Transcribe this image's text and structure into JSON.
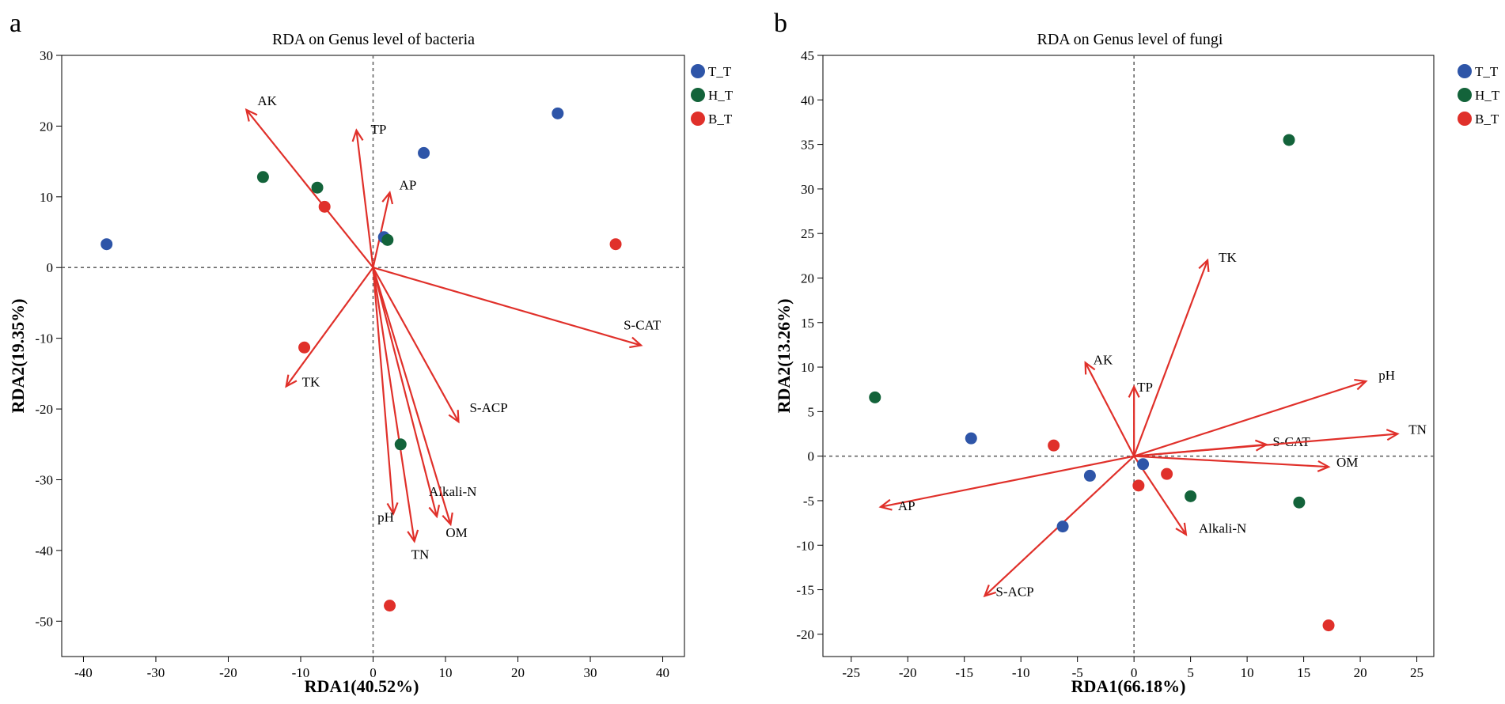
{
  "chart_data": [
    {
      "type": "scatter",
      "panel_label": "a",
      "title": "RDA on Genus level of bacteria",
      "xlabel": "RDA1(40.52%)",
      "ylabel": "RDA2(19.35%)",
      "xlim": [
        -43,
        43
      ],
      "ylim": [
        -55,
        30
      ],
      "xticks": [
        -40,
        -30,
        -20,
        -10,
        0,
        10,
        20,
        30,
        40
      ],
      "yticks": [
        -50,
        -40,
        -30,
        -20,
        -10,
        0,
        10,
        20,
        30
      ],
      "legend": [
        {
          "name": "T_T",
          "color": "#2e55a8"
        },
        {
          "name": "H_T",
          "color": "#13633a"
        },
        {
          "name": "B_T",
          "color": "#e0302a"
        }
      ],
      "points": [
        {
          "group": "T_T",
          "x": -36.8,
          "y": 3.3
        },
        {
          "group": "T_T",
          "x": 25.5,
          "y": 21.8
        },
        {
          "group": "T_T",
          "x": 7.0,
          "y": 16.2
        },
        {
          "group": "T_T",
          "x": 1.5,
          "y": 4.3
        },
        {
          "group": "H_T",
          "x": -15.2,
          "y": 12.8
        },
        {
          "group": "H_T",
          "x": -7.7,
          "y": 11.3
        },
        {
          "group": "H_T",
          "x": 2.0,
          "y": 3.9
        },
        {
          "group": "H_T",
          "x": 3.8,
          "y": -25.0
        },
        {
          "group": "B_T",
          "x": -6.7,
          "y": 8.6
        },
        {
          "group": "B_T",
          "x": 33.5,
          "y": 3.3
        },
        {
          "group": "B_T",
          "x": -9.5,
          "y": -11.3
        },
        {
          "group": "B_T",
          "x": 2.3,
          "y": -47.8
        }
      ],
      "vectors": [
        {
          "name": "AK",
          "x": -17.5,
          "y": 22.3
        },
        {
          "name": "TP",
          "x": -2.3,
          "y": 19.4
        },
        {
          "name": "AP",
          "x": 2.3,
          "y": 10.6
        },
        {
          "name": "S-CAT",
          "x": 37.0,
          "y": -11.0
        },
        {
          "name": "TK",
          "x": -12.0,
          "y": -16.8
        },
        {
          "name": "S-ACP",
          "x": 11.8,
          "y": -21.8
        },
        {
          "name": "Alkali-N",
          "x": 8.8,
          "y": -35.2
        },
        {
          "name": "OM",
          "x": 10.7,
          "y": -36.3
        },
        {
          "name": "pH",
          "x": 2.8,
          "y": -34.8
        },
        {
          "name": "TN",
          "x": 5.7,
          "y": -38.7
        }
      ]
    },
    {
      "type": "scatter",
      "panel_label": "b",
      "title": "RDA on Genus level of fungi",
      "xlabel": "RDA1(66.18%)",
      "ylabel": "RDA2(13.26%)",
      "xlim": [
        -27.5,
        26.5
      ],
      "ylim": [
        -22.5,
        45
      ],
      "xticks": [
        -25,
        -20,
        -15,
        -10,
        -5,
        0,
        5,
        10,
        15,
        20,
        25
      ],
      "yticks": [
        -20,
        -15,
        -10,
        -5,
        0,
        5,
        10,
        15,
        20,
        25,
        30,
        35,
        40,
        45
      ],
      "legend": [
        {
          "name": "T_T",
          "color": "#2e55a8"
        },
        {
          "name": "H_T",
          "color": "#13633a"
        },
        {
          "name": "B_T",
          "color": "#e0302a"
        }
      ],
      "points": [
        {
          "group": "T_T",
          "x": -14.4,
          "y": 2.0
        },
        {
          "group": "T_T",
          "x": -3.9,
          "y": -2.2
        },
        {
          "group": "T_T",
          "x": -6.3,
          "y": -7.9
        },
        {
          "group": "T_T",
          "x": 0.8,
          "y": -0.9
        },
        {
          "group": "H_T",
          "x": -22.9,
          "y": 6.6
        },
        {
          "group": "H_T",
          "x": 13.7,
          "y": 35.5
        },
        {
          "group": "H_T",
          "x": 5.0,
          "y": -4.5
        },
        {
          "group": "H_T",
          "x": 14.6,
          "y": -5.2
        },
        {
          "group": "B_T",
          "x": -7.1,
          "y": 1.2
        },
        {
          "group": "B_T",
          "x": 0.4,
          "y": -3.3
        },
        {
          "group": "B_T",
          "x": 2.9,
          "y": -2.0
        },
        {
          "group": "B_T",
          "x": 17.2,
          "y": -19.0
        }
      ],
      "vectors": [
        {
          "name": "TK",
          "x": 6.5,
          "y": 22.0
        },
        {
          "name": "AK",
          "x": -4.3,
          "y": 10.5
        },
        {
          "name": "TP",
          "x": 0.0,
          "y": 7.8
        },
        {
          "name": "pH",
          "x": 20.5,
          "y": 8.4
        },
        {
          "name": "S-CAT",
          "x": 11.7,
          "y": 1.3
        },
        {
          "name": "TN",
          "x": 23.3,
          "y": 2.5
        },
        {
          "name": "OM",
          "x": 17.2,
          "y": -1.2
        },
        {
          "name": "Alkali-N",
          "x": 4.6,
          "y": -8.8
        },
        {
          "name": "AP",
          "x": -22.4,
          "y": -5.7
        },
        {
          "name": "S-ACP",
          "x": -13.2,
          "y": -15.7
        }
      ]
    }
  ]
}
